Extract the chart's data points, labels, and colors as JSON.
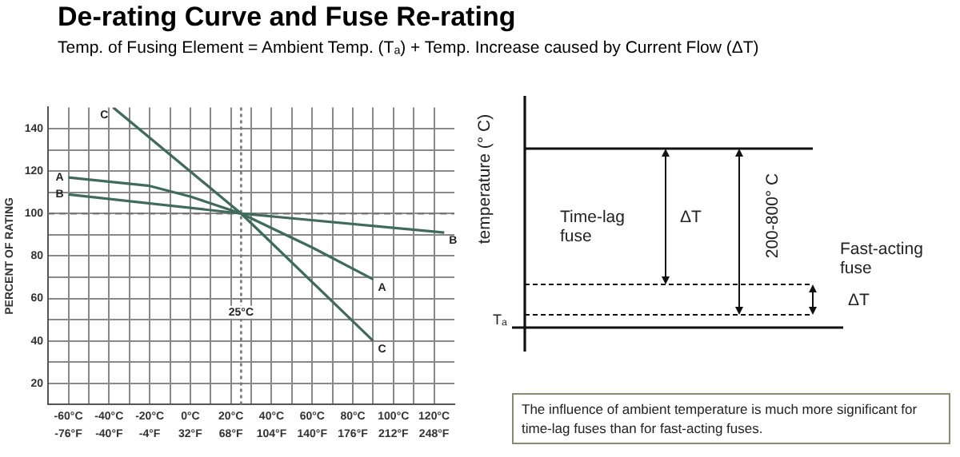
{
  "chart_data": [
    {
      "type": "line",
      "title": "De-rating Curve and Fuse Re-rating",
      "subtitle": "Temp. of Fusing Element = Ambient Temp. (Tₐ) + Temp. Increase caused by Current Flow (ΔT)",
      "ylabel": "PERCENT OF RATING",
      "series": [
        {
          "name": "A",
          "color": "#3f6b5c",
          "x": [
            -60,
            -20,
            0,
            25,
            60,
            90
          ],
          "values": [
            117,
            113,
            108,
            100,
            84,
            69
          ]
        },
        {
          "name": "B",
          "color": "#3f6b5c",
          "x": [
            -60,
            25,
            125
          ],
          "values": [
            109,
            100,
            91
          ]
        },
        {
          "name": "C",
          "color": "#3f6b5c",
          "x": [
            -38,
            25,
            90
          ],
          "values": [
            150,
            100,
            40
          ]
        }
      ],
      "xlim": [
        -70,
        130
      ],
      "ylim": [
        10,
        150
      ],
      "xticks": [
        {
          "value": -60,
          "label": "-60°C"
        },
        {
          "value": -50,
          "label": null
        },
        {
          "value": -40,
          "label": "-40°C"
        },
        {
          "value": -30,
          "label": null
        },
        {
          "value": -20,
          "label": "-20°C"
        },
        {
          "value": -10,
          "label": null
        },
        {
          "value": 0,
          "label": "0°C"
        },
        {
          "value": 10,
          "label": null
        },
        {
          "value": 20,
          "label": "20°C"
        },
        {
          "value": 30,
          "label": null
        },
        {
          "value": 40,
          "label": "40°C"
        },
        {
          "value": 50,
          "label": null
        },
        {
          "value": 60,
          "label": "60°C"
        },
        {
          "value": 70,
          "label": null
        },
        {
          "value": 80,
          "label": "80°C"
        },
        {
          "value": 90,
          "label": null
        },
        {
          "value": 100,
          "label": "100°C"
        },
        {
          "value": 110,
          "label": null
        },
        {
          "value": 120,
          "label": "120°C"
        }
      ],
      "x2lim": [
        -94,
        266
      ],
      "x2ticks": [
        {
          "value": -76,
          "label": "-76°F"
        },
        {
          "value": -40,
          "label": "-40°F"
        },
        {
          "value": -4,
          "label": "-4°F"
        },
        {
          "value": 32,
          "label": "32°F"
        },
        {
          "value": 68,
          "label": "68°F"
        },
        {
          "value": 104,
          "label": "104°F"
        },
        {
          "value": 140,
          "label": "140°F"
        },
        {
          "value": 176,
          "label": "176°F"
        },
        {
          "value": 212,
          "label": "212°F"
        },
        {
          "value": 248,
          "label": "248°F"
        }
      ],
      "yticks": [
        {
          "value": 20,
          "label": "20"
        },
        {
          "value": 30,
          "label": null
        },
        {
          "value": 40,
          "label": "40"
        },
        {
          "value": 50,
          "label": null
        },
        {
          "value": 60,
          "label": "60"
        },
        {
          "value": 70,
          "label": null
        },
        {
          "value": 80,
          "label": "80"
        },
        {
          "value": 90,
          "label": null
        },
        {
          "value": 100,
          "label": "100"
        },
        {
          "value": 110,
          "label": null
        },
        {
          "value": 120,
          "label": "120"
        },
        {
          "value": 130,
          "label": null
        },
        {
          "value": 140,
          "label": "140"
        }
      ],
      "grid": true,
      "legend": false,
      "ref_lines": [
        {
          "axis": "x",
          "value": 25,
          "label": "25°C",
          "line_style": "dotted",
          "color": "#777777"
        },
        {
          "axis": "y",
          "value": 100,
          "label": null,
          "line_style": "dashed",
          "color": "#777777"
        }
      ]
    },
    {
      "type": "other",
      "ylabel": "temperature (° C)",
      "annotations": [
        "Time-lag fuse",
        "ΔT",
        "200-800° C",
        "Fast-acting fuse",
        "ΔT",
        "Tₐ",
        "The influence of ambient temperature is much more significant for time-lag fuses than for fast-acting fuses."
      ]
    }
  ]
}
